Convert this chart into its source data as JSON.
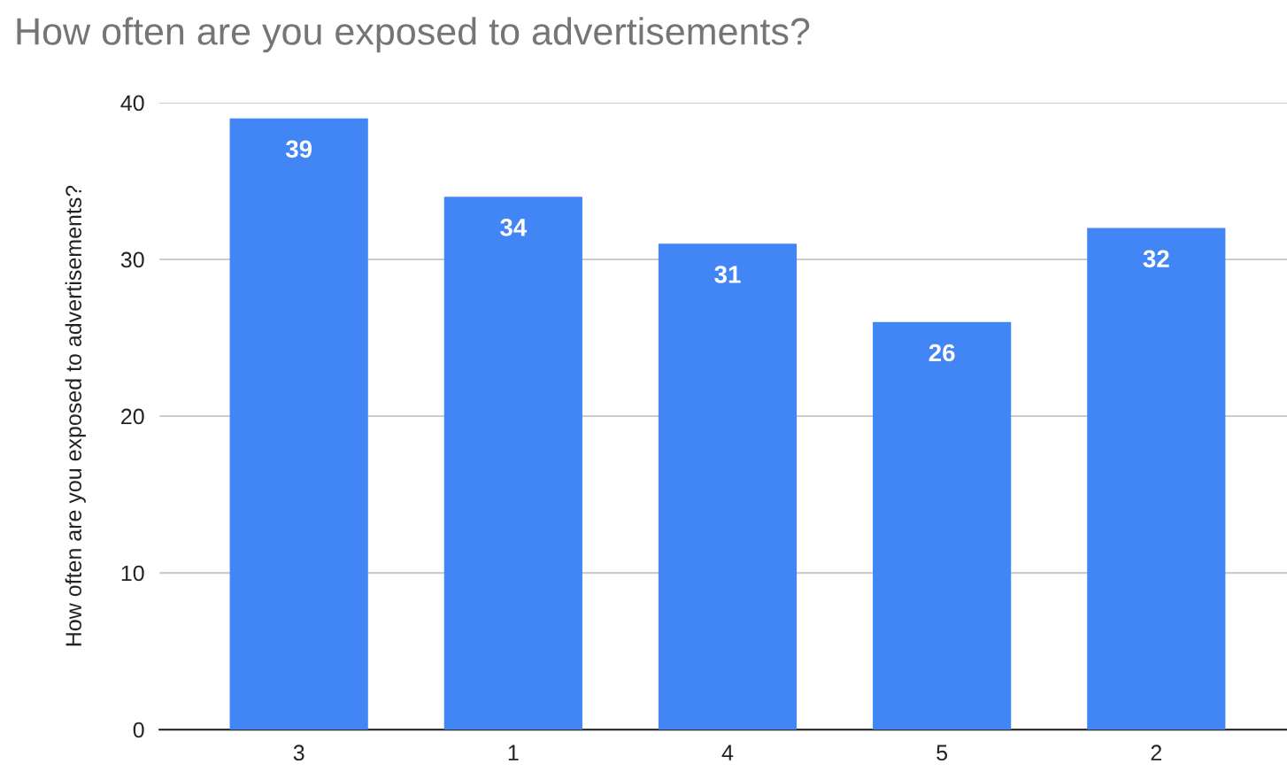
{
  "chart_data": {
    "type": "bar",
    "title": "How often are you exposed to advertisements?",
    "ylabel": "How often are you exposed to advertisements?",
    "categories": [
      "3",
      "1",
      "4",
      "5",
      "2"
    ],
    "values": [
      39,
      34,
      31,
      26,
      32
    ],
    "color": "#4285f4",
    "ylim": [
      0,
      40
    ],
    "yticks": [
      0,
      10,
      20,
      30,
      40
    ],
    "grid": "y",
    "data_labels": true,
    "legend": false
  }
}
